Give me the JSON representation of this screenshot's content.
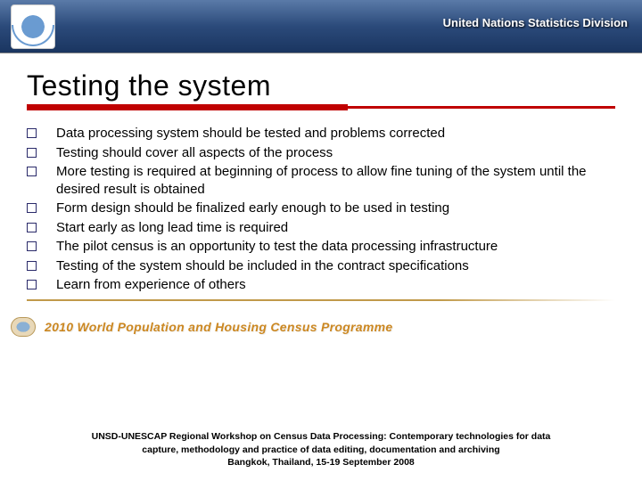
{
  "header": {
    "org_text": "United Nations Statistics Division",
    "bar_gradient_top": "#5a7aa8",
    "bar_gradient_mid": "#2b4a7a",
    "bar_gradient_bot": "#1a3560",
    "emblem_color": "#6a9bd1"
  },
  "title": {
    "text": "Testing the system",
    "fontsize": 32,
    "rule_color": "#c00000"
  },
  "bullets": {
    "box_border": "#2a2a6a",
    "fontsize": 15,
    "items": [
      "Data processing system should be tested and problems corrected",
      "Testing should cover all aspects of the process",
      "More testing is required at beginning of process to allow fine tuning of the system until the desired result is obtained",
      "Form design should be finalized early enough to be used in testing",
      "Start early as long lead time is required",
      "The pilot census is an opportunity to test the data processing infrastructure",
      "Testing of the system should be included in the contract specifications",
      "Learn from experience of others"
    ]
  },
  "programme": {
    "text": "2010 World Population and Housing Census Programme",
    "color": "#cc8822"
  },
  "footer": {
    "line1": "UNSD-UNESCAP Regional Workshop on Census Data Processing: Contemporary technologies for data",
    "line2": "capture, methodology and practice of data editing, documentation and archiving",
    "line3": "Bangkok, Thailand, 15-19 September 2008"
  },
  "divider_color": "#c19a4a",
  "background": "#ffffff"
}
